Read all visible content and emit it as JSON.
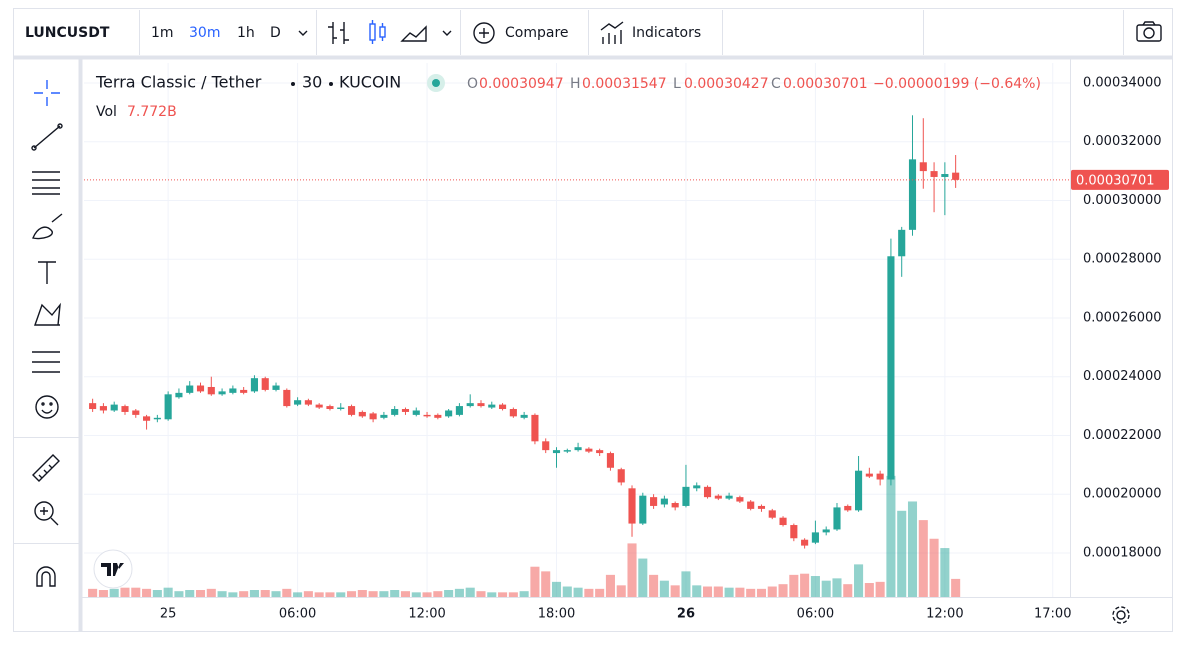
{
  "toolbar": {
    "symbol": "LUNCUSDT",
    "intervals": [
      "1m",
      "30m",
      "1h",
      "D"
    ],
    "compare": "Compare",
    "indicators": "Indicators"
  },
  "chart_data": {
    "type": "candlestick",
    "title": "Terra Classic / Tether",
    "interval": "30",
    "exchange": "KUCOIN",
    "legend_prefixes": [
      "O",
      "H",
      "L",
      "C"
    ],
    "change_label": "−0.00000199 (−0.64%)",
    "volume_title": "Vol",
    "volume_label": "7.772B",
    "up_color": "#26a69a",
    "down_color": "#ef5350",
    "grid": true,
    "xlim": [
      -0.8,
      90.6
    ],
    "xticks": [
      {
        "value": 7,
        "label": "25"
      },
      {
        "value": 19,
        "label": "06:00"
      },
      {
        "value": 31,
        "label": "12:00"
      },
      {
        "value": 43,
        "label": "18:00"
      },
      {
        "value": 55,
        "label": "26"
      },
      {
        "value": 67,
        "label": "06:00"
      },
      {
        "value": 79,
        "label": "12:00"
      },
      {
        "value": 89,
        "label": "17:00"
      }
    ],
    "ylim": [
      0.000165,
      0.0003468
    ],
    "yticks": [
      {
        "value": 0.00018,
        "label": "0.00018000"
      },
      {
        "value": 0.0002,
        "label": "0.00020000"
      },
      {
        "value": 0.00022,
        "label": "0.00022000"
      },
      {
        "value": 0.00024,
        "label": "0.00024000"
      },
      {
        "value": 0.00026,
        "label": "0.00026000"
      },
      {
        "value": 0.00028,
        "label": "0.00028000"
      },
      {
        "value": 0.0003,
        "label": "0.00030000"
      },
      {
        "value": 0.00032,
        "label": "0.00032000"
      },
      {
        "value": 0.00034,
        "label": "0.00034000"
      }
    ],
    "open": [
      0.000231,
      0.00023,
      0.0002285,
      0.00023,
      0.0002285,
      0.0002265,
      0.0002255,
      0.0002255,
      0.000233,
      0.0002345,
      0.000237,
      0.0002365,
      0.000234,
      0.0002345,
      0.0002355,
      0.000235,
      0.0002395,
      0.0002355,
      0.0002355,
      0.0002305,
      0.000232,
      0.0002305,
      0.00023,
      0.000229,
      0.00023,
      0.000228,
      0.0002275,
      0.000226,
      0.000227,
      0.000229,
      0.000227,
      0.000227,
      0.000227,
      0.0002265,
      0.000227,
      0.00023,
      0.000231,
      0.0002295,
      0.0002305,
      0.000229,
      0.000226,
      0.000227,
      0.000218,
      0.000214,
      0.0002145,
      0.000215,
      0.0002155,
      0.000215,
      0.000214,
      0.0002085,
      0.000202,
      0.00019,
      0.000199,
      0.0001965,
      0.000197,
      0.000196,
      0.000202,
      0.0002025,
      0.0001995,
      0.0001985,
      0.000199,
      0.0001975,
      0.000196,
      0.0001945,
      0.000192,
      0.0001895,
      0.0001845,
      0.0001835,
      0.000187,
      0.000188,
      0.000196,
      0.0001945,
      0.000207,
      0.000207,
      0.000205,
      0.000281,
      0.00029,
      0.000313,
      0.00031,
      0.000308,
      0.00030947
    ],
    "high": [
      0.0002325,
      0.000231,
      0.0002315,
      0.0002305,
      0.000229,
      0.000227,
      0.000227,
      0.000235,
      0.000236,
      0.0002385,
      0.000238,
      0.00024,
      0.000236,
      0.000237,
      0.0002365,
      0.0002405,
      0.00024,
      0.000238,
      0.000236,
      0.000233,
      0.0002325,
      0.000231,
      0.0002305,
      0.000231,
      0.0002305,
      0.0002285,
      0.000228,
      0.000228,
      0.00023,
      0.0002295,
      0.0002295,
      0.000228,
      0.0002275,
      0.000229,
      0.000231,
      0.000234,
      0.000232,
      0.0002315,
      0.000231,
      0.0002295,
      0.000228,
      0.0002275,
      0.000219,
      0.000216,
      0.0002155,
      0.0002175,
      0.000216,
      0.0002155,
      0.0002145,
      0.000209,
      0.000203,
      0.0002005,
      0.0002,
      0.0001995,
      0.0001975,
      0.00021,
      0.000204,
      0.000203,
      0.0002,
      0.0002005,
      0.0001995,
      0.000198,
      0.0001965,
      0.000195,
      0.0001925,
      0.00019,
      0.000185,
      0.000191,
      0.000189,
      0.000197,
      0.0001965,
      0.000213,
      0.000209,
      0.000208,
      0.000287,
      0.000291,
      0.000329,
      0.000328,
      0.000313,
      0.000313,
      0.00031547
    ],
    "low": [
      0.000228,
      0.0002275,
      0.000228,
      0.000227,
      0.000226,
      0.000222,
      0.0002245,
      0.000225,
      0.0002325,
      0.000234,
      0.0002345,
      0.0002335,
      0.0002335,
      0.000234,
      0.000234,
      0.0002345,
      0.000235,
      0.000235,
      0.0002295,
      0.00023,
      0.00023,
      0.000229,
      0.0002285,
      0.0002285,
      0.0002265,
      0.000226,
      0.0002245,
      0.0002255,
      0.0002265,
      0.000227,
      0.0002265,
      0.000226,
      0.0002255,
      0.000226,
      0.0002265,
      0.0002295,
      0.0002295,
      0.000229,
      0.0002285,
      0.000226,
      0.0002255,
      0.000217,
      0.000214,
      0.000209,
      0.000214,
      0.0002145,
      0.000214,
      0.000213,
      0.000208,
      0.000203,
      0.0001855,
      0.0001895,
      0.000195,
      0.0001955,
      0.0001945,
      0.0001955,
      0.000201,
      0.0001985,
      0.000198,
      0.000198,
      0.000197,
      0.0001945,
      0.000194,
      0.0001915,
      0.000189,
      0.000184,
      0.0001815,
      0.000183,
      0.000186,
      0.0001875,
      0.000194,
      0.000194,
      0.0002055,
      0.000203,
      0.000203,
      0.000274,
      0.000288,
      0.000304,
      0.000296,
      0.000295,
      0.00030427
    ],
    "close": [
      0.000229,
      0.0002285,
      0.0002305,
      0.000228,
      0.000227,
      0.000225,
      0.000226,
      0.000234,
      0.0002345,
      0.000237,
      0.000235,
      0.000234,
      0.000235,
      0.000236,
      0.0002345,
      0.0002395,
      0.0002355,
      0.000237,
      0.00023,
      0.000232,
      0.0002305,
      0.0002295,
      0.000229,
      0.0002295,
      0.000227,
      0.0002265,
      0.0002255,
      0.000227,
      0.000229,
      0.000228,
      0.0002285,
      0.0002265,
      0.000226,
      0.0002285,
      0.00023,
      0.000231,
      0.00023,
      0.0002305,
      0.000229,
      0.0002265,
      0.000227,
      0.000218,
      0.000215,
      0.000215,
      0.000215,
      0.000216,
      0.0002145,
      0.000214,
      0.000209,
      0.000204,
      0.00019,
      0.0001995,
      0.000196,
      0.0001985,
      0.0001955,
      0.0002025,
      0.000203,
      0.000199,
      0.0001985,
      0.0001995,
      0.0001975,
      0.000195,
      0.000195,
      0.000192,
      0.0001895,
      0.000185,
      0.0001825,
      0.000187,
      0.000188,
      0.0001955,
      0.0001945,
      0.000208,
      0.000206,
      0.000205,
      0.000281,
      0.00029,
      0.000314,
      0.00031,
      0.000308,
      0.000309,
      0.00030701
    ],
    "volume": [
      3.5,
      3,
      3.5,
      4,
      4,
      3.5,
      3,
      4,
      2.5,
      3,
      3,
      3.5,
      2.5,
      2,
      2.5,
      3,
      3,
      2.5,
      3.5,
      2,
      2.5,
      2,
      2,
      2,
      2.5,
      3,
      2.5,
      2.5,
      3,
      2.5,
      2,
      2,
      2.5,
      3,
      3.5,
      4,
      2.5,
      2,
      2,
      2,
      2.5,
      13,
      11,
      6.5,
      4.5,
      4,
      3.5,
      3.5,
      9.5,
      5,
      23,
      16.5,
      9.5,
      7,
      5,
      11,
      5,
      4.5,
      4.5,
      4,
      4,
      3.5,
      3.5,
      4.5,
      5.5,
      9.5,
      10,
      9,
      7,
      8,
      5.5,
      14,
      6,
      6.5,
      52,
      37,
      41,
      33,
      25,
      21,
      7.772
    ]
  }
}
